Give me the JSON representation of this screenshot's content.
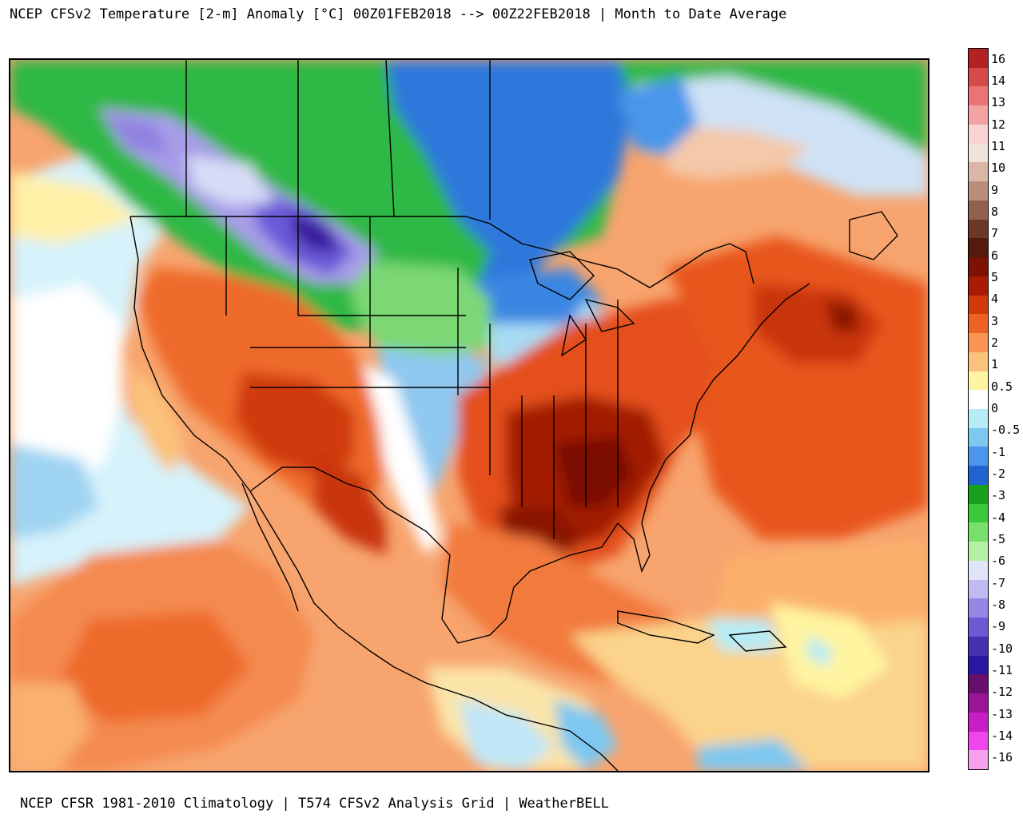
{
  "title": "NCEP CFSv2 Temperature [2-m] Anomaly  [°C] 00Z01FEB2018 --> 00Z22FEB2018 | Month to Date Average",
  "footer": "NCEP CFSR 1981-2010 Climatology | T574 CFSv2 Analysis Grid | WeatherBELL",
  "colorbar": {
    "ticks": [
      "16",
      "14",
      "13",
      "12",
      "11",
      "10",
      "9",
      "8",
      "7",
      "6",
      "5",
      "4",
      "3",
      "2",
      "1",
      "0.5",
      "0",
      "-0.5",
      "-1",
      "-2",
      "-3",
      "-4",
      "-5",
      "-6",
      "-7",
      "-8",
      "-9",
      "-10",
      "-11",
      "-12",
      "-13",
      "-14",
      "-16"
    ],
    "colors": [
      "#b22222",
      "#d64a4a",
      "#ea7373",
      "#f4a3a3",
      "#f9d2d2",
      "#efe3dc",
      "#d9b6a6",
      "#b98d7a",
      "#93604e",
      "#6d3728",
      "#531a10",
      "#7d1204",
      "#a81c04",
      "#d23a08",
      "#ee6225",
      "#f89552",
      "#fbc27c",
      "#fff4a0",
      "#ffffff",
      "#b6ecf6",
      "#7dc7f0",
      "#4a96ea",
      "#2064d2",
      "#18a21c",
      "#3cc83c",
      "#77e06a",
      "#b5f0a4",
      "#e0e4f8",
      "#c0baf2",
      "#9587e6",
      "#6f58d4",
      "#4630b2",
      "#2818a0",
      "#6a0e6e",
      "#9a1498",
      "#c81ec6",
      "#ee46ea",
      "#f6a0ee"
    ]
  },
  "map": {
    "region": "North America",
    "field": "2-m temperature anomaly",
    "units": "°C",
    "background": "#f7b07a"
  }
}
